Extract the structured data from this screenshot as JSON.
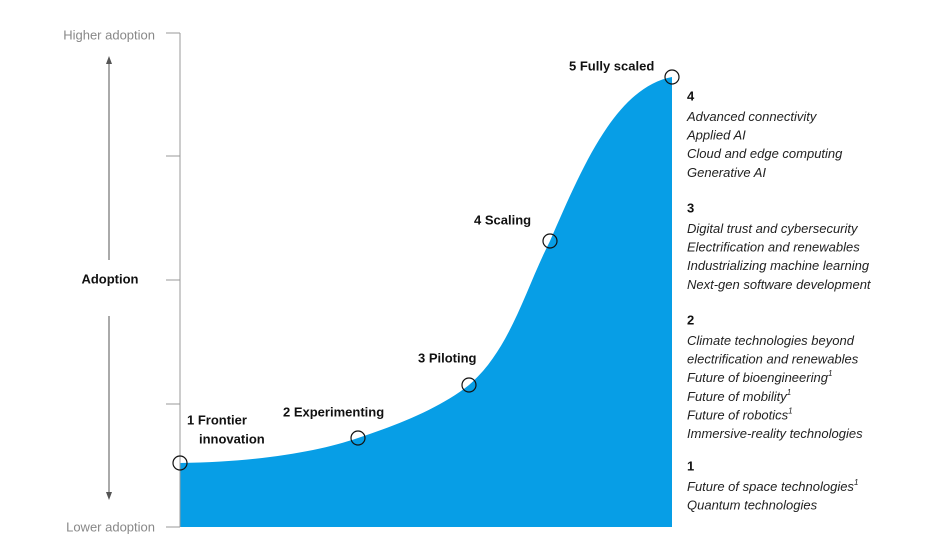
{
  "axis": {
    "top_label": "Higher adoption",
    "bottom_label": "Lower adoption",
    "title": "Adoption"
  },
  "stages": [
    {
      "lines": [
        "1 Frontier",
        "innovation"
      ]
    },
    {
      "lines": [
        "2 Experimenting"
      ]
    },
    {
      "lines": [
        "3 Piloting"
      ]
    },
    {
      "lines": [
        "4 Scaling"
      ]
    },
    {
      "lines": [
        "5 Fully scaled"
      ]
    }
  ],
  "groups": [
    {
      "heading": "4",
      "items": [
        {
          "text": "Advanced connectivity"
        },
        {
          "text": "Applied AI"
        },
        {
          "text": "Cloud and edge computing"
        },
        {
          "text": "Generative AI"
        }
      ]
    },
    {
      "heading": "3",
      "items": [
        {
          "text": "Digital trust and cybersecurity"
        },
        {
          "text": "Electrification and renewables"
        },
        {
          "text": "Industrializing machine learning"
        },
        {
          "text": "Next-gen software development"
        }
      ]
    },
    {
      "heading": "2",
      "items": [
        {
          "text": "Climate technologies beyond"
        },
        {
          "text": "electrification and renewables"
        },
        {
          "text": "Future of bioengineering",
          "note": "1"
        },
        {
          "text": "Future of mobility",
          "note": "1"
        },
        {
          "text": "Future of robotics",
          "note": "1"
        },
        {
          "text": "Immersive-reality technologies"
        }
      ]
    },
    {
      "heading": "1",
      "items": [
        {
          "text": "Future of space technologies",
          "note": "1"
        },
        {
          "text": "Quantum technologies"
        }
      ]
    }
  ]
}
